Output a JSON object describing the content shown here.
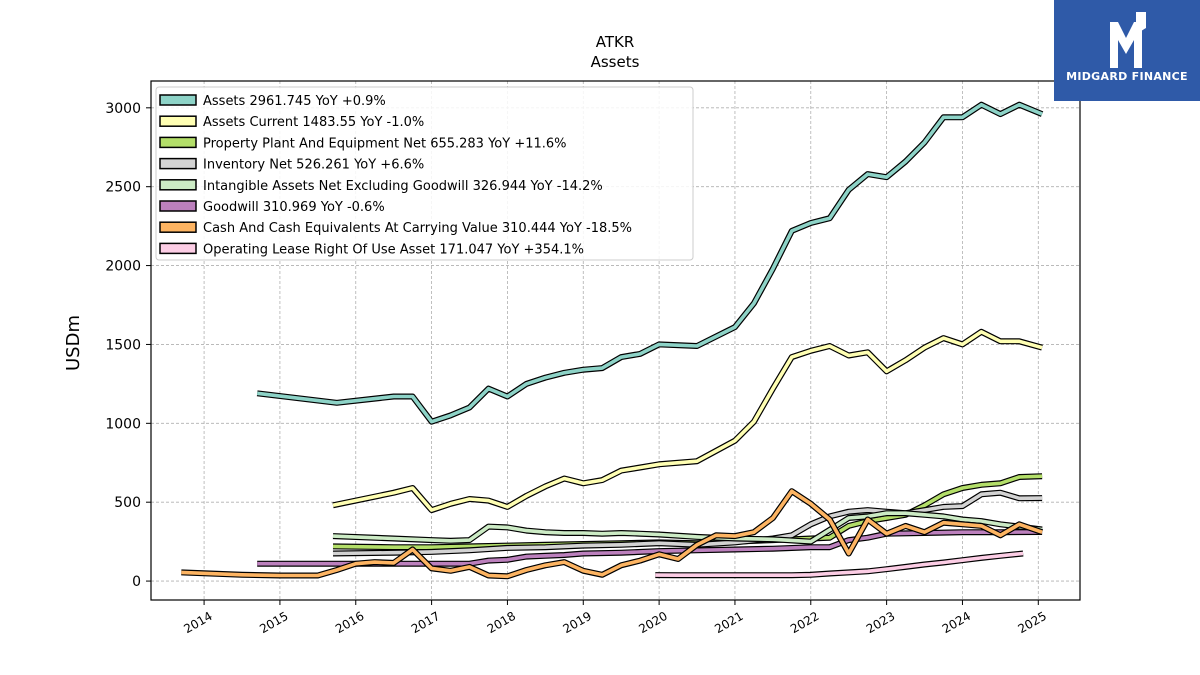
{
  "brand": {
    "name": "MIDGARD FINANCE",
    "bg_color": "#2f5aa8"
  },
  "chart_data": {
    "type": "line",
    "title": "ATKR",
    "subtitle": "Assets",
    "ylabel": "USDm",
    "xlabel": "",
    "xlim": [
      2013.3,
      2025.55
    ],
    "ylim": [
      -120,
      3170
    ],
    "x_ticks": [
      2014,
      2015,
      2016,
      2017,
      2018,
      2019,
      2020,
      2021,
      2022,
      2023,
      2024,
      2025
    ],
    "y_ticks": [
      0,
      500,
      1000,
      1500,
      2000,
      2500,
      3000
    ],
    "grid": true,
    "legend_position": "top-left",
    "series": [
      {
        "name": "Assets  2961.745 YoY +0.9%",
        "color": "#8dd3c7",
        "x": [
          2014.7,
          2015.75,
          2016.5,
          2016.75,
          2017.0,
          2017.25,
          2017.5,
          2017.75,
          2018.0,
          2018.25,
          2018.5,
          2018.75,
          2019.0,
          2019.25,
          2019.5,
          2019.75,
          2020.0,
          2020.5,
          2021.0,
          2021.25,
          2021.5,
          2021.75,
          2022.0,
          2022.25,
          2022.5,
          2022.75,
          2023.0,
          2023.25,
          2023.5,
          2023.75,
          2024.0,
          2024.25,
          2024.5,
          2024.75,
          2025.05
        ],
        "y": [
          1190,
          1130,
          1170,
          1170,
          1010,
          1050,
          1100,
          1220,
          1170,
          1250,
          1290,
          1320,
          1340,
          1350,
          1420,
          1440,
          1500,
          1490,
          1610,
          1760,
          1980,
          2220,
          2270,
          2300,
          2480,
          2580,
          2560,
          2660,
          2780,
          2940,
          2940,
          3020,
          2960,
          3020,
          2960
        ]
      },
      {
        "name": "Assets Current  1483.55 YoY -1.0%",
        "color": "#ffffb3",
        "x": [
          2015.7,
          2016.5,
          2016.75,
          2017.0,
          2017.25,
          2017.5,
          2017.75,
          2018.0,
          2018.25,
          2018.5,
          2018.75,
          2019.0,
          2019.25,
          2019.5,
          2019.75,
          2020.0,
          2020.5,
          2021.0,
          2021.25,
          2021.5,
          2021.75,
          2022.0,
          2022.25,
          2022.5,
          2022.75,
          2023.0,
          2023.25,
          2023.5,
          2023.75,
          2024.0,
          2024.25,
          2024.5,
          2024.75,
          2025.05
        ],
        "y": [
          480,
          560,
          590,
          450,
          490,
          520,
          510,
          470,
          540,
          600,
          650,
          620,
          640,
          700,
          720,
          740,
          760,
          890,
          1010,
          1220,
          1420,
          1460,
          1490,
          1430,
          1450,
          1330,
          1400,
          1480,
          1540,
          1500,
          1580,
          1520,
          1520,
          1480
        ]
      },
      {
        "name": "Property Plant And Equipment Net  655.283 YoY +11.6%",
        "color": "#b3de69",
        "x": [
          2015.7,
          2016.5,
          2017.0,
          2017.5,
          2018.0,
          2018.5,
          2019.0,
          2019.5,
          2020.0,
          2020.5,
          2021.0,
          2021.5,
          2022.0,
          2022.25,
          2022.5,
          2022.75,
          2023.0,
          2023.25,
          2023.5,
          2023.75,
          2024.0,
          2024.25,
          2024.5,
          2024.75,
          2025.05
        ],
        "y": [
          220,
          215,
          215,
          220,
          225,
          230,
          235,
          240,
          245,
          240,
          250,
          260,
          270,
          275,
          350,
          380,
          400,
          420,
          480,
          550,
          590,
          610,
          620,
          660,
          665
        ]
      },
      {
        "name": "Inventory Net  526.261 YoY +6.6%",
        "color": "#d3d3d3",
        "x": [
          2015.7,
          2016.5,
          2017.0,
          2017.5,
          2018.0,
          2018.5,
          2019.0,
          2019.5,
          2020.0,
          2020.5,
          2021.0,
          2021.5,
          2021.75,
          2022.0,
          2022.25,
          2022.5,
          2022.75,
          2023.0,
          2023.25,
          2023.5,
          2023.75,
          2024.0,
          2024.25,
          2024.5,
          2024.75,
          2025.05
        ],
        "y": [
          175,
          180,
          185,
          195,
          210,
          215,
          225,
          230,
          240,
          230,
          245,
          270,
          290,
          360,
          410,
          440,
          450,
          440,
          430,
          450,
          470,
          475,
          550,
          560,
          525,
          526
        ]
      },
      {
        "name": "Intangible Assets Net Excluding Goodwill  326.944 YoY -14.2%",
        "color": "#ccebc5",
        "x": [
          2015.7,
          2016.5,
          2017.0,
          2017.25,
          2017.5,
          2017.75,
          2018.0,
          2018.25,
          2018.5,
          2018.75,
          2019.0,
          2019.25,
          2019.5,
          2019.75,
          2020.0,
          2020.5,
          2021.0,
          2021.5,
          2022.0,
          2022.5,
          2022.75,
          2023.0,
          2023.25,
          2023.5,
          2023.75,
          2024.0,
          2024.25,
          2024.5,
          2024.75,
          2025.05
        ],
        "y": [
          285,
          270,
          260,
          255,
          260,
          345,
          340,
          320,
          310,
          305,
          305,
          300,
          305,
          300,
          295,
          280,
          270,
          265,
          250,
          400,
          410,
          430,
          430,
          420,
          410,
          390,
          380,
          360,
          345,
          327
        ]
      },
      {
        "name": "Goodwill  310.969 YoY -0.6%",
        "color": "#bc80bd",
        "x": [
          2014.7,
          2015.75,
          2016.5,
          2017.0,
          2017.5,
          2017.75,
          2018.0,
          2018.25,
          2018.5,
          2018.75,
          2019.0,
          2019.5,
          2020.0,
          2020.5,
          2021.0,
          2021.5,
          2022.0,
          2022.25,
          2022.5,
          2022.75,
          2023.0,
          2023.5,
          2024.0,
          2024.5,
          2025.05
        ],
        "y": [
          110,
          110,
          110,
          110,
          110,
          130,
          135,
          155,
          160,
          165,
          175,
          180,
          190,
          195,
          200,
          205,
          215,
          215,
          260,
          275,
          300,
          305,
          310,
          310,
          311
        ]
      },
      {
        "name": "Cash And Cash Equivalents At Carrying Value  310.444 YoY -18.5%",
        "color": "#fdb462",
        "x": [
          2013.7,
          2014.5,
          2015.0,
          2015.5,
          2015.75,
          2016.0,
          2016.25,
          2016.5,
          2016.75,
          2017.0,
          2017.25,
          2017.5,
          2017.75,
          2018.0,
          2018.25,
          2018.5,
          2018.75,
          2019.0,
          2019.25,
          2019.5,
          2019.75,
          2020.0,
          2020.25,
          2020.5,
          2020.75,
          2021.0,
          2021.25,
          2021.5,
          2021.75,
          2022.0,
          2022.25,
          2022.5,
          2022.75,
          2023.0,
          2023.25,
          2023.5,
          2023.75,
          2024.0,
          2024.25,
          2024.5,
          2024.75,
          2025.05
        ],
        "y": [
          55,
          40,
          35,
          35,
          70,
          110,
          120,
          115,
          200,
          80,
          65,
          90,
          35,
          30,
          70,
          100,
          120,
          65,
          40,
          100,
          130,
          170,
          140,
          230,
          290,
          285,
          310,
          400,
          570,
          490,
          390,
          175,
          390,
          300,
          350,
          310,
          370,
          360,
          350,
          290,
          360,
          310
        ]
      },
      {
        "name": "Operating Lease Right Of Use Asset  171.047 YoY +354.1%",
        "color": "#fccde5",
        "x": [
          2019.95,
          2020.25,
          2020.5,
          2020.75,
          2021.0,
          2021.25,
          2021.5,
          2021.75,
          2022.0,
          2022.25,
          2022.5,
          2022.75,
          2023.0,
          2023.25,
          2023.5,
          2023.75,
          2024.0,
          2024.25,
          2024.5,
          2024.8
        ],
        "y": [
          38,
          37,
          37,
          37,
          37,
          37,
          37,
          37,
          40,
          48,
          55,
          62,
          75,
          90,
          105,
          118,
          132,
          147,
          160,
          175
        ]
      }
    ]
  }
}
